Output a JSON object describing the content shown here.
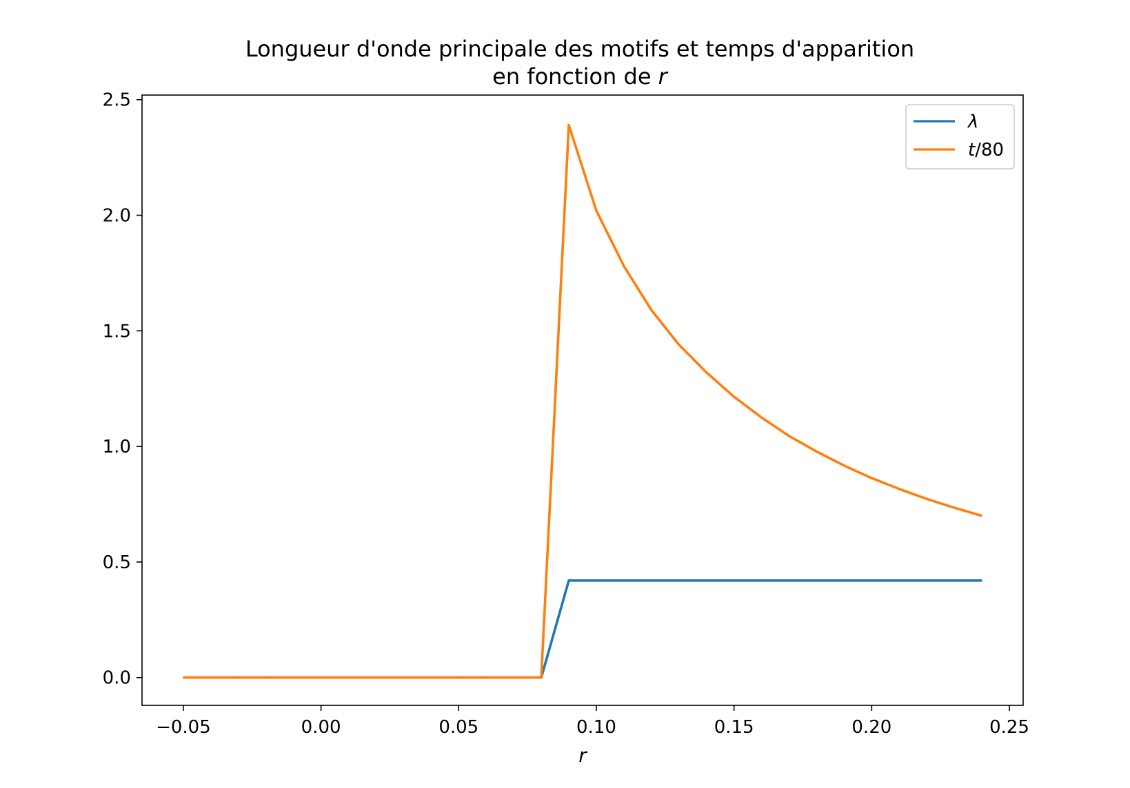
{
  "chart_data": {
    "type": "line",
    "title": {
      "line1": "Longueur d'onde principale des motifs et temps d'apparition",
      "line2_prefix": "en fonction de ",
      "line2_var": "r"
    },
    "xlabel": "r",
    "ylabel": "",
    "xlim": [
      -0.065,
      0.255
    ],
    "ylim": [
      -0.12,
      2.52
    ],
    "xticks": [
      -0.05,
      0.0,
      0.05,
      0.1,
      0.15,
      0.2,
      0.25
    ],
    "xtick_labels": [
      "−0.05",
      "0.00",
      "0.05",
      "0.10",
      "0.15",
      "0.20",
      "0.25"
    ],
    "yticks": [
      0.0,
      0.5,
      1.0,
      1.5,
      2.0,
      2.5
    ],
    "ytick_labels": [
      "0.0",
      "0.5",
      "1.0",
      "1.5",
      "2.0",
      "2.5"
    ],
    "grid": false,
    "legend_position": "top-right",
    "series": [
      {
        "name": "λ",
        "color": "#1f77b4",
        "x": [
          -0.05,
          0.08,
          0.09,
          0.24
        ],
        "y": [
          0.0,
          0.0,
          0.42,
          0.42
        ]
      },
      {
        "name_italic": "t",
        "name_rest": "/80",
        "color": "#ff7f0e",
        "x": [
          -0.05,
          -0.04,
          -0.03,
          -0.02,
          -0.01,
          0.0,
          0.01,
          0.02,
          0.03,
          0.04,
          0.05,
          0.06,
          0.07,
          0.08,
          0.09,
          0.1,
          0.11,
          0.12,
          0.13,
          0.14,
          0.15,
          0.16,
          0.17,
          0.18,
          0.19,
          0.2,
          0.21,
          0.22,
          0.23,
          0.24
        ],
        "y": [
          0.0,
          0.0,
          0.0,
          0.0,
          0.0,
          0.0,
          0.0,
          0.0,
          0.0,
          0.0,
          0.0,
          0.0,
          0.0,
          0.0,
          2.39,
          2.02,
          1.78,
          1.59,
          1.44,
          1.32,
          1.215,
          1.125,
          1.045,
          0.978,
          0.917,
          0.863,
          0.816,
          0.773,
          0.735,
          0.7
        ]
      }
    ]
  }
}
